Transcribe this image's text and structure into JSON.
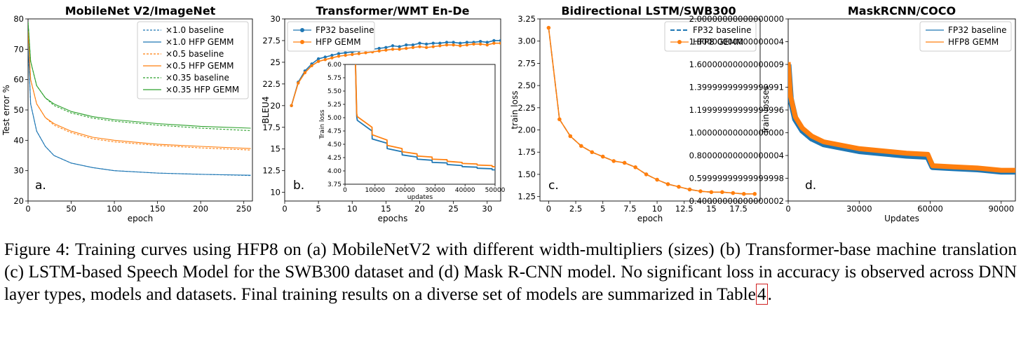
{
  "figure": {
    "label": "Figure 4:",
    "caption_text": "Training curves using HFP8 on (a) MobileNetV2 with different width-multipliers (sizes) (b) Transformer-base machine translation (c) LSTM-based Speech Model for the SWB300 dataset and (d) Mask R-CNN model. No significant loss in accuracy is observed across DNN layer types, models and datasets. Final training results on a diverse set of models are summarized in Table",
    "caption_ref": "4",
    "caption_end": "."
  },
  "colors": {
    "blue": "#1f77b4",
    "orange": "#ff7f0e",
    "green": "#2ca02c",
    "ref_box": "#d02020"
  },
  "chart_data": [
    {
      "type": "line",
      "title": "MobileNet V2/ImageNet",
      "xlabel": "epoch",
      "ylabel": "Test error %",
      "panel_letter": "a.",
      "xlim": [
        0,
        260
      ],
      "ylim": [
        20,
        80
      ],
      "xticks": [
        0,
        50,
        100,
        150,
        200,
        250
      ],
      "yticks": [
        20,
        30,
        40,
        50,
        60,
        70,
        80
      ],
      "legend_position": "top-right",
      "grid": false,
      "series": [
        {
          "name": "×1.0 baseline",
          "color_key": "blue",
          "dashed": true,
          "x": [
            0,
            3,
            10,
            20,
            30,
            50,
            75,
            100,
            150,
            200,
            258
          ],
          "y": [
            72,
            52,
            43,
            38,
            35,
            32.5,
            31,
            30,
            29.2,
            28.8,
            28.4
          ]
        },
        {
          "name": "×1.0 HFP GEMM",
          "color_key": "blue",
          "dashed": false,
          "x": [
            0,
            3,
            10,
            20,
            30,
            50,
            75,
            100,
            150,
            200,
            258
          ],
          "y": [
            72,
            52,
            43,
            38,
            35,
            32.5,
            31,
            30,
            29.2,
            28.8,
            28.5
          ]
        },
        {
          "name": "×0.5 baseline",
          "color_key": "orange",
          "dashed": true,
          "x": [
            0,
            3,
            10,
            20,
            30,
            50,
            75,
            100,
            150,
            200,
            258
          ],
          "y": [
            76,
            60,
            52,
            47.5,
            45,
            42.5,
            40.5,
            39.5,
            38.3,
            37.5,
            36.8
          ]
        },
        {
          "name": "×0.5 HFP GEMM",
          "color_key": "orange",
          "dashed": false,
          "x": [
            0,
            3,
            10,
            20,
            30,
            50,
            75,
            100,
            150,
            200,
            258
          ],
          "y": [
            76,
            60,
            52,
            47.5,
            45.5,
            43,
            41,
            40,
            38.7,
            38,
            37.3
          ]
        },
        {
          "name": "×0.35 baseline",
          "color_key": "green",
          "dashed": true,
          "x": [
            0,
            3,
            10,
            20,
            30,
            50,
            75,
            100,
            150,
            200,
            258
          ],
          "y": [
            79,
            66,
            58,
            54,
            51.5,
            49,
            47.3,
            46.3,
            45,
            44,
            43.2
          ]
        },
        {
          "name": "×0.35 HFP GEMM",
          "color_key": "green",
          "dashed": false,
          "x": [
            0,
            3,
            10,
            20,
            30,
            50,
            75,
            100,
            150,
            200,
            258
          ],
          "y": [
            79,
            66,
            58,
            54,
            52,
            49.5,
            47.8,
            46.8,
            45.5,
            44.6,
            44
          ]
        }
      ]
    },
    {
      "type": "line",
      "title": "Transformer/WMT En-De",
      "xlabel": "epochs",
      "ylabel": "BLEU4",
      "panel_letter": "b.",
      "xlim": [
        0,
        32
      ],
      "ylim": [
        9,
        30
      ],
      "xticks": [
        0,
        5,
        10,
        15,
        20,
        25,
        30
      ],
      "yticks": [
        10.0,
        12.5,
        15.0,
        17.5,
        20.0,
        22.5,
        25.0,
        27.5,
        30.0
      ],
      "legend_position": "top-left",
      "grid": false,
      "series": [
        {
          "name": "FP32 baseline",
          "color_key": "blue",
          "markers": true,
          "x": [
            1,
            2,
            3,
            4,
            5,
            6,
            7,
            8,
            9,
            10,
            11,
            12,
            13,
            14,
            15,
            16,
            17,
            18,
            19,
            20,
            21,
            22,
            23,
            24,
            25,
            26,
            27,
            28,
            29,
            30,
            31,
            32
          ],
          "y": [
            20.0,
            22.7,
            24.0,
            24.8,
            25.4,
            25.6,
            25.8,
            26.0,
            26.1,
            26.2,
            26.3,
            26.5,
            26.5,
            26.6,
            26.7,
            26.9,
            26.8,
            27.0,
            27.0,
            27.2,
            27.1,
            27.2,
            27.2,
            27.3,
            27.3,
            27.2,
            27.3,
            27.3,
            27.4,
            27.3,
            27.5,
            27.5
          ]
        },
        {
          "name": "HFP GEMM",
          "color_key": "orange",
          "markers": true,
          "x": [
            1,
            2,
            3,
            4,
            5,
            6,
            7,
            8,
            9,
            10,
            11,
            12,
            13,
            14,
            15,
            16,
            17,
            18,
            19,
            20,
            21,
            22,
            23,
            24,
            25,
            26,
            27,
            28,
            29,
            30,
            31,
            32
          ],
          "y": [
            20.0,
            22.6,
            23.8,
            24.6,
            25.1,
            25.3,
            25.5,
            25.7,
            25.8,
            25.9,
            26.0,
            26.1,
            26.2,
            26.3,
            26.4,
            26.5,
            26.5,
            26.6,
            26.7,
            26.8,
            26.7,
            26.8,
            26.9,
            27.0,
            27.0,
            26.9,
            27.0,
            27.1,
            27.1,
            27.0,
            27.2,
            27.2
          ]
        }
      ],
      "inset": {
        "xlabel": "updates",
        "ylabel": "Train loss",
        "xlim": [
          0,
          50000
        ],
        "ylim": [
          3.75,
          6.0
        ],
        "xticks": [
          0,
          10000,
          20000,
          30000,
          40000,
          50000
        ],
        "yticks": [
          3.75,
          4.0,
          4.25,
          4.5,
          4.75,
          5.0,
          5.25,
          5.5,
          5.75,
          6.0
        ],
        "series": [
          {
            "name": "FP32 baseline",
            "color_key": "blue",
            "x": [
              3500,
              3900,
              4100,
              9000,
              9050,
              14000,
              14050,
              19000,
              19050,
              24000,
              24050,
              29000,
              29050,
              34000,
              34050,
              39000,
              39050,
              44000,
              44050,
              49000,
              49050,
              50000
            ],
            "y": [
              6.0,
              5.02,
              4.95,
              4.75,
              4.6,
              4.52,
              4.42,
              4.36,
              4.3,
              4.26,
              4.22,
              4.2,
              4.16,
              4.15,
              4.12,
              4.1,
              4.08,
              4.07,
              4.05,
              4.04,
              4.02,
              4.02
            ]
          },
          {
            "name": "HFP GEMM",
            "color_key": "orange",
            "x": [
              3500,
              3900,
              4100,
              9000,
              9050,
              14000,
              14050,
              19000,
              19050,
              24000,
              24050,
              29000,
              29050,
              34000,
              34050,
              39000,
              39050,
              44000,
              44050,
              49000,
              49050,
              50000
            ],
            "y": [
              6.0,
              5.08,
              5.02,
              4.82,
              4.68,
              4.58,
              4.48,
              4.42,
              4.36,
              4.32,
              4.28,
              4.26,
              4.22,
              4.21,
              4.18,
              4.16,
              4.14,
              4.13,
              4.11,
              4.1,
              4.08,
              4.08
            ]
          }
        ]
      }
    },
    {
      "type": "line",
      "title": "Bidirectional LSTM/SWB300",
      "xlabel": "epoch",
      "ylabel": "train loss",
      "panel_letter": "c.",
      "xlim": [
        -0.8,
        19.5
      ],
      "ylim": [
        1.2,
        3.25
      ],
      "xticks": [
        0.0,
        2.5,
        5.0,
        7.5,
        10.0,
        12.5,
        15.0,
        17.5
      ],
      "yticks": [
        1.25,
        1.5,
        1.75,
        2.0,
        2.25,
        2.5,
        2.75,
        3.0,
        3.25
      ],
      "legend_position": "top-right",
      "grid": false,
      "series": [
        {
          "name": "FP32 baseline",
          "color_key": "blue",
          "dashed": true,
          "x": [
            0,
            1,
            2,
            3,
            4,
            5,
            6,
            7,
            8,
            9,
            10,
            11,
            12,
            13,
            14,
            15,
            16,
            17,
            18,
            19
          ],
          "y": [
            3.15,
            2.12,
            1.93,
            1.82,
            1.75,
            1.7,
            1.65,
            1.63,
            1.58,
            1.5,
            1.44,
            1.39,
            1.36,
            1.33,
            1.31,
            1.3,
            1.3,
            1.29,
            1.28,
            1.28
          ]
        },
        {
          "name": "HFP8 GEMM",
          "color_key": "orange",
          "markers": true,
          "x": [
            0,
            1,
            2,
            3,
            4,
            5,
            6,
            7,
            8,
            9,
            10,
            11,
            12,
            13,
            14,
            15,
            16,
            17,
            18,
            19
          ],
          "y": [
            3.15,
            2.12,
            1.93,
            1.82,
            1.75,
            1.7,
            1.65,
            1.63,
            1.58,
            1.5,
            1.44,
            1.39,
            1.36,
            1.33,
            1.31,
            1.3,
            1.3,
            1.29,
            1.28,
            1.28
          ]
        }
      ]
    },
    {
      "type": "line",
      "title": "MaskRCNN/COCO",
      "xlabel": "Updates",
      "ylabel": "Train losses",
      "panel_letter": "d.",
      "xlim": [
        0,
        96000
      ],
      "ylim": [
        0.4,
        2.0
      ],
      "xticks": [
        0,
        30000,
        60000,
        90000
      ],
      "yticks": [
        0.4,
        0.6,
        0.8,
        1.0,
        1.2,
        1.4,
        1.6,
        1.8,
        2.0
      ],
      "legend_position": "top-right",
      "grid": false,
      "series": [
        {
          "name": "FP32 baseline",
          "color_key": "blue",
          "x": [
            0,
            1000,
            3000,
            6000,
            10000,
            15000,
            20000,
            30000,
            40000,
            50000,
            59000,
            61000,
            70000,
            80000,
            90000,
            96000
          ],
          "y": [
            1.6,
            1.3,
            1.12,
            1.02,
            0.95,
            0.9,
            0.88,
            0.84,
            0.82,
            0.8,
            0.79,
            0.7,
            0.69,
            0.68,
            0.66,
            0.66
          ]
        },
        {
          "name": "HFP8 GEMM",
          "color_key": "orange",
          "x": [
            0,
            1000,
            3000,
            6000,
            10000,
            15000,
            20000,
            30000,
            40000,
            50000,
            59000,
            61000,
            70000,
            80000,
            90000,
            96000
          ],
          "y": [
            1.62,
            1.32,
            1.14,
            1.04,
            0.97,
            0.92,
            0.9,
            0.86,
            0.84,
            0.82,
            0.81,
            0.71,
            0.7,
            0.69,
            0.67,
            0.67
          ]
        }
      ]
    }
  ]
}
